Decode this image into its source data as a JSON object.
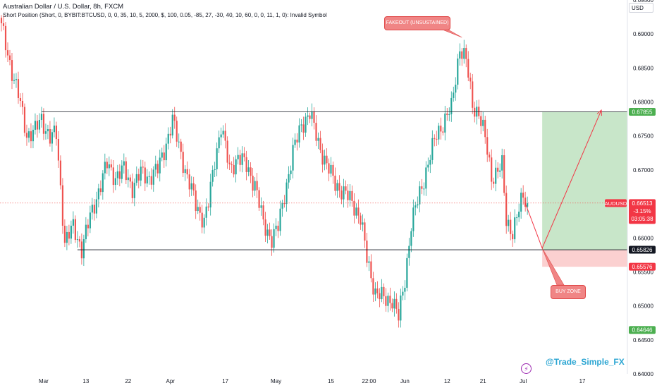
{
  "header": {
    "title": "Australian Dollar / U.S. Dollar, 8h, FXCM",
    "indicator": "Short Position (Short, 0, BYBIT:BTCUSD, 0, 0, 35, 10, 5, 2000, $, 100, 0.05, -85, 27, -30, 40, 10, 60, 0, 0, 11, 1, 0): Invalid Symbol"
  },
  "currency_button": {
    "label": "USD"
  },
  "annotations": {
    "fakeout": "FAKEOUT (UNSUSTAINED)",
    "buy_zone": "BUY ZONE"
  },
  "watermark": {
    "text": "@Trade_Simple_FX",
    "icon": "lightning-icon"
  },
  "colors": {
    "up": "#26a69a",
    "down": "#ef5350",
    "profit_zone": "#c8e6c9",
    "loss_zone": "#fbd0d0",
    "price_line": "#ef5350",
    "label_green": "#4caf50",
    "label_red": "#f23645"
  },
  "chart_data": {
    "type": "candlestick",
    "symbol": "AUDUSD",
    "timeframe": "8h",
    "y_axis": {
      "min": 0.64,
      "max": 0.695,
      "ticks": [
        0.64,
        0.645,
        0.65,
        0.655,
        0.66,
        0.665,
        0.67,
        0.675,
        0.68,
        0.685,
        0.69,
        0.695
      ]
    },
    "x_axis": {
      "ticks": [
        {
          "label": "Mar",
          "bar": 20
        },
        {
          "label": "13",
          "bar": 40
        },
        {
          "label": "22",
          "bar": 60
        },
        {
          "label": "Apr",
          "bar": 80
        },
        {
          "label": "17",
          "bar": 106
        },
        {
          "label": "May",
          "bar": 130
        },
        {
          "label": "15",
          "bar": 156
        },
        {
          "label": "22:00",
          "bar": 174
        },
        {
          "label": "Jun",
          "bar": 191
        },
        {
          "label": "12",
          "bar": 211
        },
        {
          "label": "21",
          "bar": 228
        },
        {
          "label": "Jul",
          "bar": 247
        },
        {
          "label": "17",
          "bar": 275
        }
      ]
    },
    "total_slots": 297,
    "resistance": 0.67855,
    "support": 0.65826,
    "position": {
      "entry": 0.65826,
      "target": 0.67855,
      "stop": 0.65576,
      "start_bar": 256,
      "end_bar": 297
    },
    "current": {
      "symbol_label": "AUDUSD",
      "price": "0.66513",
      "change": "-3.15%",
      "countdown": "03:05:38",
      "value": 0.66513
    },
    "low_label": {
      "price": "0.64646",
      "value": 0.64646
    },
    "labels": {
      "target": "0.67855",
      "entry": "0.65826",
      "stop": "0.65576"
    },
    "projection": [
      {
        "bar": 248,
        "price": 0.6651
      },
      {
        "bar": 256,
        "price": 0.6585
      },
      {
        "bar": 284,
        "price": 0.6788
      }
    ],
    "path": [
      [
        0,
        0.691
      ],
      [
        4,
        0.6858
      ],
      [
        8,
        0.681
      ],
      [
        12,
        0.6752
      ],
      [
        16,
        0.6758
      ],
      [
        19,
        0.6775
      ],
      [
        23,
        0.6748
      ],
      [
        26,
        0.6752
      ],
      [
        30,
        0.6595
      ],
      [
        34,
        0.6615
      ],
      [
        38,
        0.6585
      ],
      [
        42,
        0.663
      ],
      [
        46,
        0.667
      ],
      [
        50,
        0.6708
      ],
      [
        54,
        0.669
      ],
      [
        58,
        0.67
      ],
      [
        62,
        0.6675
      ],
      [
        66,
        0.6695
      ],
      [
        70,
        0.669
      ],
      [
        74,
        0.67
      ],
      [
        78,
        0.674
      ],
      [
        81,
        0.6772
      ],
      [
        85,
        0.6725
      ],
      [
        88,
        0.6688
      ],
      [
        92,
        0.665
      ],
      [
        96,
        0.6625
      ],
      [
        98,
        0.665
      ],
      [
        101,
        0.6715
      ],
      [
        104,
        0.6765
      ],
      [
        108,
        0.67
      ],
      [
        112,
        0.672
      ],
      [
        116,
        0.6705
      ],
      [
        120,
        0.668
      ],
      [
        124,
        0.662
      ],
      [
        128,
        0.66
      ],
      [
        131,
        0.6615
      ],
      [
        134,
        0.6665
      ],
      [
        138,
        0.6725
      ],
      [
        142,
        0.6768
      ],
      [
        146,
        0.6782
      ],
      [
        150,
        0.6742
      ],
      [
        154,
        0.6705
      ],
      [
        158,
        0.6682
      ],
      [
        162,
        0.6665
      ],
      [
        166,
        0.6655
      ],
      [
        170,
        0.6628
      ],
      [
        173,
        0.657
      ],
      [
        177,
        0.652
      ],
      [
        181,
        0.651
      ],
      [
        185,
        0.651
      ],
      [
        188,
        0.6482
      ],
      [
        191,
        0.654
      ],
      [
        194,
        0.662
      ],
      [
        198,
        0.6665
      ],
      [
        202,
        0.671
      ],
      [
        206,
        0.6752
      ],
      [
        210,
        0.6775
      ],
      [
        213,
        0.679
      ],
      [
        217,
        0.6882
      ],
      [
        220,
        0.686
      ],
      [
        223,
        0.6795
      ],
      [
        226,
        0.6785
      ],
      [
        229,
        0.6745
      ],
      [
        232,
        0.669
      ],
      [
        235,
        0.67
      ],
      [
        237,
        0.6705
      ],
      [
        239,
        0.6625
      ],
      [
        242,
        0.661
      ],
      [
        245,
        0.664
      ],
      [
        247,
        0.6662
      ],
      [
        249,
        0.6651
      ]
    ]
  }
}
